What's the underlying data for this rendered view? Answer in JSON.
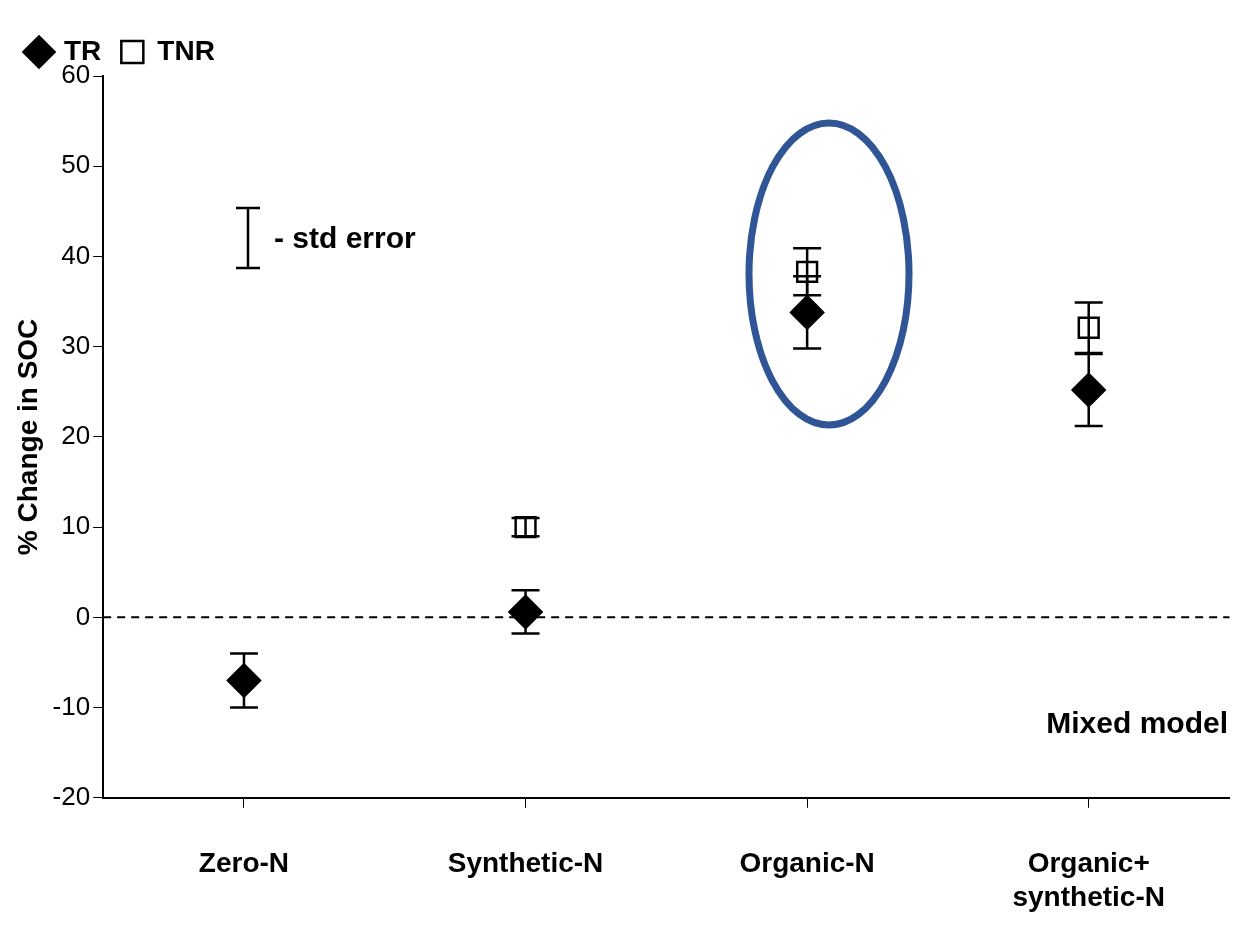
{
  "chart_data": {
    "type": "scatter",
    "ylabel": "% Change in SOC",
    "categories": [
      "Zero-N",
      "Synthetic-N",
      "Organic-N",
      "Organic+ synthetic-N"
    ],
    "series": [
      {
        "name": "TR",
        "color": "#000000",
        "marker": "diamond",
        "values": [
          -7,
          0.6,
          33.8,
          25.2
        ],
        "errors": [
          3,
          2.4,
          4,
          4
        ]
      },
      {
        "name": "TNR",
        "color": "#000000",
        "marker": "square",
        "values": [
          null,
          10,
          38.3,
          32.1
        ],
        "errors": [
          null,
          1,
          2.6,
          2.8
        ]
      }
    ],
    "ylim": [
      -20,
      60
    ],
    "yticks": [
      -20,
      -10,
      0,
      10,
      20,
      30,
      40,
      50,
      60
    ],
    "ref_lines": [
      {
        "axis": "y",
        "value": 0,
        "line_style": "dashed",
        "color": "#000000"
      }
    ],
    "annotations": [
      "- std error",
      "Mixed model"
    ],
    "legend": "top left",
    "grid": false
  }
}
